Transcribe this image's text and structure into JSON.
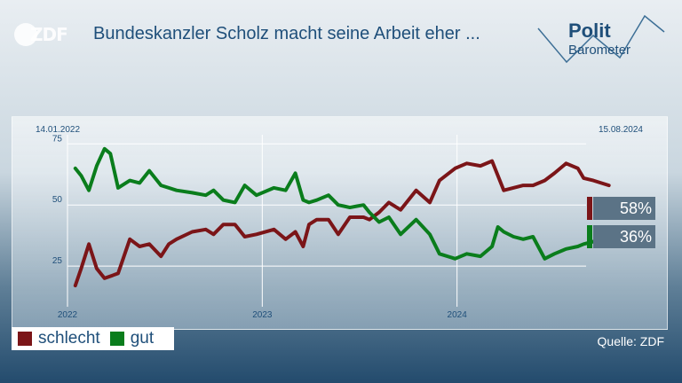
{
  "header": {
    "logo_text": "ZDF",
    "title": "Bundeskanzler Scholz macht seine Arbeit eher ...",
    "brand_line1": "Polit",
    "brand_line2": "Barometer"
  },
  "footer": {
    "source": "Quelle: ZDF"
  },
  "legend": [
    {
      "label": "schlecht",
      "color": "#7b1518"
    },
    {
      "label": "gut",
      "color": "#0a7d1c"
    }
  ],
  "end_values": [
    {
      "label": "58%",
      "color": "#7b1518"
    },
    {
      "label": "36%",
      "color": "#0a7d1c"
    }
  ],
  "chart_data": {
    "type": "line",
    "start_date_label": "14.01.2022",
    "end_date_label": "15.08.2024",
    "x_tick_labels": [
      "2022",
      "2023",
      "2024"
    ],
    "x_ticks": [
      2022.0,
      2023.0,
      2024.0
    ],
    "y_ticks": [
      25,
      50,
      75
    ],
    "ylim": [
      0,
      82
    ],
    "xlim": [
      2022.0,
      2025.0
    ],
    "grid": true,
    "series": [
      {
        "name": "schlecht",
        "color": "#7b1518",
        "x": [
          2022.04,
          2022.07,
          2022.11,
          2022.15,
          2022.19,
          2022.26,
          2022.32,
          2022.37,
          2022.42,
          2022.48,
          2022.52,
          2022.56,
          2022.64,
          2022.71,
          2022.75,
          2022.8,
          2022.86,
          2022.91,
          2022.97,
          2023.06,
          2023.12,
          2023.17,
          2023.21,
          2023.24,
          2023.28,
          2023.34,
          2023.39,
          2023.45,
          2023.52,
          2023.55,
          2023.6,
          2023.65,
          2023.71,
          2023.79,
          2023.86,
          2023.91,
          2023.99,
          2024.05,
          2024.12,
          2024.18,
          2024.24,
          2024.34,
          2024.39,
          2024.45,
          2024.5,
          2024.56,
          2024.62,
          2024.65,
          2024.7,
          2024.78
        ],
        "y": [
          17,
          24,
          34,
          24,
          20,
          22,
          36,
          33,
          34,
          29,
          34,
          36,
          39,
          40,
          38,
          42,
          42,
          37,
          38,
          40,
          36,
          39,
          33,
          42,
          44,
          44,
          38,
          45,
          45,
          44,
          47,
          51,
          48,
          56,
          51,
          60,
          65,
          67,
          66,
          68,
          56,
          58,
          58,
          60,
          63,
          67,
          65,
          61,
          60,
          58
        ]
      },
      {
        "name": "gut",
        "color": "#0a7d1c",
        "x": [
          2022.04,
          2022.07,
          2022.11,
          2022.15,
          2022.19,
          2022.22,
          2022.26,
          2022.32,
          2022.37,
          2022.42,
          2022.48,
          2022.52,
          2022.56,
          2022.64,
          2022.71,
          2022.75,
          2022.8,
          2022.86,
          2022.91,
          2022.97,
          2023.06,
          2023.12,
          2023.17,
          2023.21,
          2023.24,
          2023.28,
          2023.34,
          2023.39,
          2023.45,
          2023.52,
          2023.55,
          2023.6,
          2023.65,
          2023.71,
          2023.79,
          2023.86,
          2023.91,
          2023.99,
          2024.05,
          2024.12,
          2024.18,
          2024.21,
          2024.24,
          2024.29,
          2024.34,
          2024.39,
          2024.45,
          2024.5,
          2024.56,
          2024.62,
          2024.65,
          2024.7,
          2024.78
        ],
        "y": [
          65,
          62,
          56,
          66,
          73,
          71,
          57,
          60,
          59,
          64,
          58,
          57,
          56,
          55,
          54,
          56,
          52,
          51,
          58,
          54,
          57,
          56,
          63,
          52,
          51,
          52,
          54,
          50,
          49,
          50,
          47,
          43,
          45,
          38,
          44,
          38,
          30,
          28,
          30,
          29,
          33,
          41,
          39,
          37,
          36,
          37,
          28,
          30,
          32,
          33,
          34,
          35,
          36
        ]
      }
    ]
  }
}
